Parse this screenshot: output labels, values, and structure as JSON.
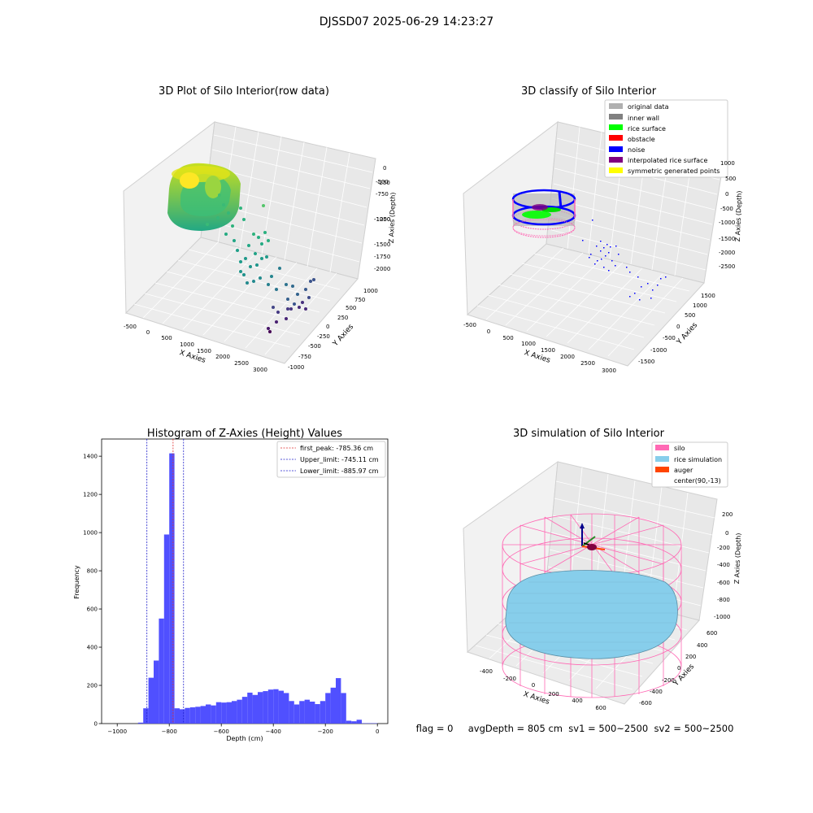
{
  "figure": {
    "suptitle": "DJSSD07 2025-06-29 14:23:27",
    "footer": "flag = 0     avgDepth = 805 cm  sv1 = 500~2500  sv2 = 500~2500"
  },
  "colors": {
    "hist_bar": "#5050FF",
    "first_peak": "#E03030",
    "limit_line": "#2020CC",
    "silo": "#FF69B4",
    "rice_simulation": "#87CEEB",
    "auger": "#FF4500",
    "original": "#B0B0B0",
    "inner_wall": "#808080",
    "rice_surface": "#00FF00",
    "obstacle": "#FF0000",
    "noise": "#0000FF",
    "interpolated": "#800080",
    "symmetric": "#FFFF00"
  },
  "chart_data": [
    {
      "type": "scatter3d",
      "title": "3D Plot of Silo Interior(row data)",
      "xlabel": "X Axies",
      "ylabel": "Y Axies",
      "zlabel": "Z Axies (Depth)",
      "xticks": [
        "-500",
        "0",
        "500",
        "1000",
        "1500",
        "2000",
        "2500",
        "3000"
      ],
      "yticks": [
        "-1000",
        "-750",
        "-500",
        "-250",
        "0",
        "250",
        "500",
        "750",
        "1000"
      ],
      "zticks": [
        "-2000",
        "-1750",
        "-1500",
        "-1250",
        "-1000",
        "-750",
        "-500",
        "-250",
        "0"
      ],
      "colormap": "viridis"
    },
    {
      "type": "scatter3d",
      "title": "3D classify of Silo Interior",
      "xlabel": "X Axies",
      "ylabel": "Y Axies",
      "zlabel": "Z Axies (Depth)",
      "xticks": [
        "-500",
        "0",
        "500",
        "1000",
        "1500",
        "2000",
        "2500",
        "3000"
      ],
      "yticks": [
        "-1500",
        "-1000",
        "-500",
        "0",
        "500",
        "1000",
        "1500"
      ],
      "zticks": [
        "-2500",
        "-2000",
        "-1500",
        "-1000",
        "-500",
        "0",
        "500",
        "1000"
      ],
      "legend": [
        "original data",
        "inner wall",
        "rice surface",
        "obstacle",
        "noise",
        "interpolated rice surface",
        "symmetric generated points"
      ]
    },
    {
      "type": "bar",
      "title": "Histogram of Z-Axies (Height) Values",
      "xlabel": "Depth (cm)",
      "ylabel": "Frequency",
      "xlim": [
        -1060,
        40
      ],
      "ylim": [
        0,
        1490
      ],
      "bin_width": 20,
      "bin_starts": [
        -920,
        -900,
        -880,
        -860,
        -840,
        -820,
        -800,
        -780,
        -760,
        -740,
        -720,
        -700,
        -680,
        -660,
        -640,
        -620,
        -600,
        -580,
        -560,
        -540,
        -520,
        -500,
        -480,
        -460,
        -440,
        -420,
        -400,
        -380,
        -360,
        -340,
        -320,
        -300,
        -280,
        -260,
        -240,
        -220,
        -200,
        -180,
        -160,
        -140,
        -120,
        -100,
        -80,
        -60,
        -40,
        -20
      ],
      "values": [
        5,
        80,
        240,
        330,
        550,
        990,
        1415,
        80,
        75,
        82,
        85,
        88,
        92,
        100,
        95,
        112,
        110,
        112,
        118,
        125,
        140,
        162,
        150,
        165,
        170,
        178,
        180,
        172,
        160,
        118,
        100,
        118,
        125,
        115,
        102,
        118,
        160,
        188,
        238,
        160,
        15,
        12,
        20,
        2,
        2,
        2
      ],
      "xticks": [
        "−1000",
        "−800",
        "−600",
        "−400",
        "−200",
        "0"
      ],
      "xtick_values": [
        -1000,
        -800,
        -600,
        -400,
        -200,
        0
      ],
      "yticks": [
        "0",
        "200",
        "400",
        "600",
        "800",
        "1000",
        "1200",
        "1400"
      ],
      "ytick_values": [
        0,
        200,
        400,
        600,
        800,
        1000,
        1200,
        1400
      ],
      "vlines": [
        {
          "x": -785.36,
          "label": "first_peak: -785.36 cm",
          "style": "first_peak"
        },
        {
          "x": -745.11,
          "label": "Upper_limit: -745.11 cm",
          "style": "limit"
        },
        {
          "x": -885.97,
          "label": "Lower_limit: -885.97 cm",
          "style": "limit"
        }
      ]
    },
    {
      "type": "surface3d",
      "title": "3D simulation of Silo Interior",
      "xlabel": "X Axies",
      "ylabel": "Y Axies",
      "zlabel": "Z Axies (Depth)",
      "xticks": [
        "-400",
        "-200",
        "0",
        "200",
        "400",
        "600"
      ],
      "yticks": [
        "-600",
        "-400",
        "-200",
        "0",
        "200",
        "400",
        "600"
      ],
      "zticks": [
        "-1000",
        "-800",
        "-600",
        "-400",
        "-200",
        "0",
        "200"
      ],
      "legend": [
        "silo",
        "rice simulation",
        "auger",
        "center(90,-13)"
      ]
    }
  ]
}
